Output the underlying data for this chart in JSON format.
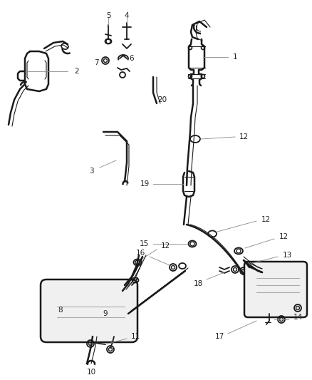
{
  "bg_color": "#ffffff",
  "line_color": "#1a1a1a",
  "leader_color": "#888888",
  "label_color": "#222222",
  "fig_width": 4.38,
  "fig_height": 5.33,
  "dpi": 100,
  "lw_thick": 1.8,
  "lw_med": 1.3,
  "lw_thin": 0.8,
  "lw_leader": 0.6,
  "fontsize": 7.5
}
